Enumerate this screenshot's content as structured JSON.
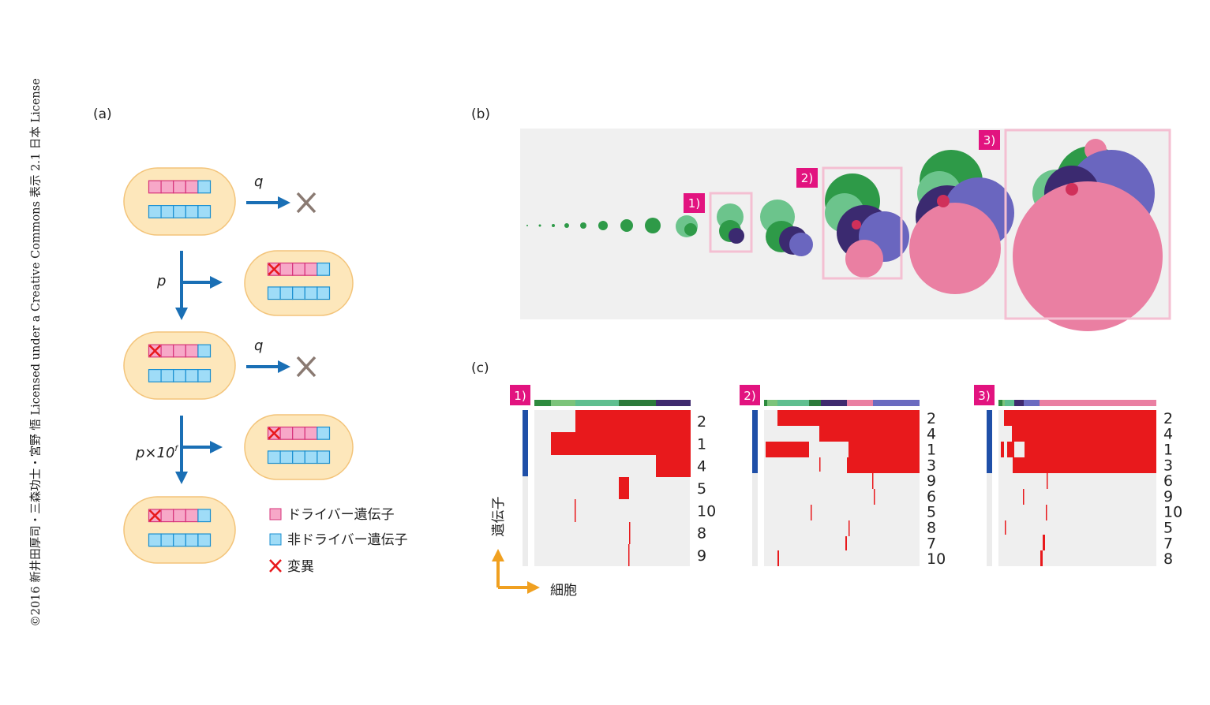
{
  "copyright": "©2016 新井田厚司・三森功士・宮野 悟 Licensed under a Creative Commons 表示 2.1 日本 License",
  "panel_a": {
    "label": "(a)",
    "rates": [
      "q",
      "p",
      "q"
    ],
    "rate_p10": {
      "base": "p×10",
      "exponent": "f"
    },
    "legend": [
      "ドライバー遺伝子",
      "非ドライバー遺伝子",
      "変異"
    ]
  },
  "panel_b": {
    "label": "(b)",
    "snapshots": [
      "1)",
      "2)",
      "3)"
    ]
  },
  "panel_c": {
    "label": "(c)",
    "y_axis": "遺伝子",
    "x_axis": "細胞",
    "heatmaps": [
      {
        "label": "1)",
        "genes": [
          2,
          1,
          4,
          5,
          10,
          8,
          9
        ]
      },
      {
        "label": "2)",
        "genes": [
          2,
          4,
          1,
          3,
          9,
          6,
          5,
          8,
          7,
          10
        ]
      },
      {
        "label": "3)",
        "genes": [
          2,
          4,
          1,
          3,
          6,
          9,
          10,
          5,
          7,
          8
        ]
      }
    ]
  }
}
